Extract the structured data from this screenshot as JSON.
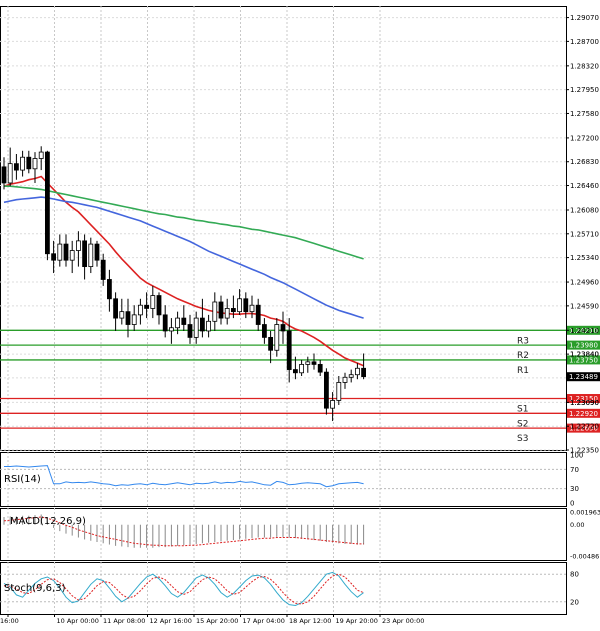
{
  "chart_data": [
    {
      "type": "candlestick",
      "price_axis": {
        "ticks": [
          "1.29070",
          "1.28700",
          "1.28320",
          "1.27950",
          "1.27580",
          "1.27200",
          "1.26830",
          "1.26460",
          "1.26080",
          "1.25710",
          "1.25340",
          "1.24960",
          "1.24590",
          "1.24210",
          "1.23840",
          "1.23470",
          "1.23090",
          "1.22720",
          "1.22350"
        ],
        "ylim": [
          1.2235,
          1.2925
        ]
      },
      "time_axis": {
        "labels": [
          "16:00",
          "10 Apr 00:00",
          "11 Apr 08:00",
          "12 Apr 16:00",
          "15 Apr 20:00",
          "17 Apr 04:00",
          "18 Apr 12:00",
          "19 Apr 20:00",
          "23 Apr 00:00"
        ]
      },
      "candles": [
        [
          1.2675,
          1.269,
          1.264,
          1.265
        ],
        [
          1.265,
          1.2705,
          1.2645,
          1.268
        ],
        [
          1.268,
          1.2695,
          1.2655,
          1.267
        ],
        [
          1.267,
          1.27,
          1.266,
          1.269
        ],
        [
          1.269,
          1.27,
          1.2665,
          1.2672
        ],
        [
          1.2672,
          1.2698,
          1.265,
          1.2688
        ],
        [
          1.2688,
          1.2707,
          1.267,
          1.2698
        ],
        [
          1.2698,
          1.27,
          1.253,
          1.254
        ],
        [
          1.254,
          1.256,
          1.251,
          1.253
        ],
        [
          1.253,
          1.257,
          1.252,
          1.2555
        ],
        [
          1.2555,
          1.257,
          1.252,
          1.253
        ],
        [
          1.253,
          1.256,
          1.251,
          1.2545
        ],
        [
          1.2545,
          1.2575,
          1.252,
          1.256
        ],
        [
          1.256,
          1.257,
          1.25,
          1.252
        ],
        [
          1.252,
          1.2565,
          1.251,
          1.2555
        ],
        [
          1.2555,
          1.256,
          1.252,
          1.253
        ],
        [
          1.253,
          1.254,
          1.249,
          1.25
        ],
        [
          1.25,
          1.2515,
          1.245,
          1.247
        ],
        [
          1.247,
          1.248,
          1.242,
          1.244
        ],
        [
          1.244,
          1.247,
          1.243,
          1.245
        ],
        [
          1.245,
          1.247,
          1.241,
          1.243
        ],
        [
          1.243,
          1.246,
          1.242,
          1.2445
        ],
        [
          1.2445,
          1.247,
          1.243,
          1.246
        ],
        [
          1.246,
          1.248,
          1.244,
          1.2455
        ],
        [
          1.2455,
          1.249,
          1.244,
          1.2475
        ],
        [
          1.2475,
          1.248,
          1.243,
          1.2445
        ],
        [
          1.2445,
          1.246,
          1.241,
          1.242
        ],
        [
          1.242,
          1.244,
          1.24,
          1.2425
        ],
        [
          1.2425,
          1.245,
          1.2415,
          1.244
        ],
        [
          1.244,
          1.246,
          1.242,
          1.243
        ],
        [
          1.243,
          1.2445,
          1.24,
          1.241
        ],
        [
          1.241,
          1.245,
          1.24,
          1.244
        ],
        [
          1.244,
          1.247,
          1.241,
          1.242
        ],
        [
          1.242,
          1.2445,
          1.241,
          1.2435
        ],
        [
          1.2435,
          1.248,
          1.242,
          1.2465
        ],
        [
          1.2465,
          1.2475,
          1.243,
          1.244
        ],
        [
          1.244,
          1.247,
          1.243,
          1.2455
        ],
        [
          1.2455,
          1.2475,
          1.244,
          1.245
        ],
        [
          1.245,
          1.2485,
          1.2445,
          1.247
        ],
        [
          1.247,
          1.248,
          1.244,
          1.245
        ],
        [
          1.245,
          1.2475,
          1.244,
          1.246
        ],
        [
          1.246,
          1.247,
          1.242,
          1.243
        ],
        [
          1.243,
          1.244,
          1.24,
          1.241
        ],
        [
          1.241,
          1.242,
          1.237,
          1.239
        ],
        [
          1.239,
          1.244,
          1.238,
          1.243
        ],
        [
          1.243,
          1.245,
          1.24,
          1.242
        ],
        [
          1.242,
          1.244,
          1.234,
          1.236
        ],
        [
          1.236,
          1.238,
          1.2345,
          1.2355
        ],
        [
          1.2355,
          1.2375,
          1.235,
          1.2368
        ],
        [
          1.2368,
          1.238,
          1.2355,
          1.2372
        ],
        [
          1.2372,
          1.2385,
          1.236,
          1.2368
        ],
        [
          1.2368,
          1.2375,
          1.235,
          1.2356
        ],
        [
          1.2356,
          1.2362,
          1.229,
          1.23
        ],
        [
          1.23,
          1.2325,
          1.228,
          1.2312
        ],
        [
          1.2312,
          1.235,
          1.2305,
          1.234
        ],
        [
          1.234,
          1.2355,
          1.233,
          1.2348
        ],
        [
          1.2348,
          1.236,
          1.234,
          1.2352
        ],
        [
          1.2352,
          1.237,
          1.2345,
          1.2362
        ],
        [
          1.2362,
          1.2385,
          1.2345,
          1.2349
        ]
      ],
      "moving_averages": [
        {
          "color": "#dd2222",
          "values": [
            1.2645,
            1.2648,
            1.265,
            1.2652,
            1.2655,
            1.2657,
            1.266,
            1.265,
            1.264,
            1.263,
            1.262,
            1.2612,
            1.2605,
            1.2595,
            1.2585,
            1.2575,
            1.2565,
            1.2555,
            1.2543,
            1.2532,
            1.2522,
            1.2512,
            1.2502,
            1.2495,
            1.249,
            1.2485,
            1.248,
            1.2475,
            1.247,
            1.2466,
            1.2462,
            1.2458,
            1.2455,
            1.2452,
            1.245,
            1.2448,
            1.2447,
            1.2446,
            1.2446,
            1.2447,
            1.2447,
            1.2446,
            1.2444,
            1.244,
            1.2438,
            1.2435,
            1.2428,
            1.2423,
            1.242,
            1.2415,
            1.241,
            1.2404,
            1.2397,
            1.239,
            1.2384,
            1.2378,
            1.2374,
            1.237,
            1.2366
          ]
        },
        {
          "color": "#4466dd",
          "values": [
            1.262,
            1.2622,
            1.2624,
            1.2625,
            1.2626,
            1.2627,
            1.2628,
            1.2627,
            1.2625,
            1.2623,
            1.2621,
            1.262,
            1.2618,
            1.2616,
            1.2614,
            1.2612,
            1.2609,
            1.2606,
            1.2603,
            1.26,
            1.2597,
            1.2594,
            1.2591,
            1.2587,
            1.2583,
            1.2579,
            1.2575,
            1.2571,
            1.2567,
            1.2563,
            1.2559,
            1.2554,
            1.2549,
            1.2544,
            1.254,
            1.2536,
            1.2532,
            1.2528,
            1.2524,
            1.252,
            1.2516,
            1.2512,
            1.2508,
            1.2503,
            1.2499,
            1.2495,
            1.249,
            1.2485,
            1.248,
            1.2475,
            1.247,
            1.2465,
            1.246,
            1.2456,
            1.2452,
            1.2449,
            1.2446,
            1.2443,
            1.244
          ]
        },
        {
          "color": "#33aa55",
          "values": [
            1.2645,
            1.2645,
            1.2644,
            1.2643,
            1.2642,
            1.2641,
            1.264,
            1.2638,
            1.2636,
            1.2634,
            1.2632,
            1.263,
            1.2628,
            1.2626,
            1.2624,
            1.2622,
            1.262,
            1.2618,
            1.2616,
            1.2614,
            1.2612,
            1.261,
            1.2608,
            1.2606,
            1.2604,
            1.2602,
            1.2601,
            1.2599,
            1.2597,
            1.2596,
            1.2594,
            1.2592,
            1.2591,
            1.2589,
            1.2588,
            1.2586,
            1.2585,
            1.2583,
            1.2582,
            1.258,
            1.2578,
            1.2577,
            1.2575,
            1.2573,
            1.2571,
            1.2569,
            1.2567,
            1.2565,
            1.2562,
            1.2559,
            1.2556,
            1.2553,
            1.255,
            1.2547,
            1.2544,
            1.2541,
            1.2538,
            1.2535,
            1.2532
          ]
        }
      ],
      "pivot_levels": [
        {
          "label": "R3",
          "price": "1.24210",
          "color": "#2a9d2a"
        },
        {
          "label": "R2",
          "price": "1.23980",
          "color": "#2a9d2a"
        },
        {
          "label": "R1",
          "price": "1.23750",
          "color": "#2a9d2a"
        },
        {
          "label": "S1",
          "price": "1.23150",
          "color": "#dd2222"
        },
        {
          "label": "S2",
          "price": "1.22920",
          "color": "#dd2222"
        },
        {
          "label": "S3",
          "price": "1.22690",
          "color": "#dd2222"
        }
      ],
      "extra_price_labels": [
        "1.23840",
        "1.23090"
      ],
      "current_price": "1.23489"
    },
    {
      "type": "line",
      "title": "RSI(14)",
      "ticks": [
        "100",
        "70",
        "30",
        "0"
      ],
      "ylim": [
        0,
        100
      ],
      "levels": [
        70,
        30
      ],
      "color": "#3388ee",
      "values": [
        76,
        76,
        77,
        76,
        75,
        76,
        77,
        78,
        40,
        40,
        44,
        42,
        43,
        42,
        44,
        42,
        40,
        39,
        36,
        38,
        37,
        39,
        40,
        38,
        41,
        39,
        38,
        40,
        42,
        40,
        38,
        41,
        40,
        41,
        44,
        41,
        43,
        42,
        45,
        43,
        44,
        41,
        38,
        37,
        45,
        43,
        38,
        39,
        41,
        42,
        41,
        40,
        34,
        36,
        40,
        41,
        42,
        43,
        40
      ]
    },
    {
      "type": "histogram",
      "title": "MACD(12,26,9)",
      "ticks": [
        "0.001963",
        "0.00",
        "-0.004861"
      ],
      "ylim": [
        -0.0052,
        0.0023
      ],
      "bar_color": "#888888",
      "signal_color": "#dd2222",
      "values": [
        0.0012,
        0.0013,
        0.0013,
        0.0014,
        0.0014,
        0.0015,
        0.0016,
        0.0004,
        -0.0005,
        -0.001,
        -0.0014,
        -0.0017,
        -0.002,
        -0.0023,
        -0.0025,
        -0.0027,
        -0.0029,
        -0.0031,
        -0.0033,
        -0.0034,
        -0.0035,
        -0.0036,
        -0.0036,
        -0.0036,
        -0.0036,
        -0.0035,
        -0.0035,
        -0.0034,
        -0.0033,
        -0.0032,
        -0.0031,
        -0.003,
        -0.0029,
        -0.0028,
        -0.0027,
        -0.0026,
        -0.0025,
        -0.0024,
        -0.0023,
        -0.0022,
        -0.0021,
        -0.002,
        -0.002,
        -0.002,
        -0.0019,
        -0.0019,
        -0.002,
        -0.0021,
        -0.0022,
        -0.0023,
        -0.0024,
        -0.0025,
        -0.0027,
        -0.0028,
        -0.0029,
        -0.003,
        -0.003,
        -0.0031,
        -0.0031
      ],
      "signal": [
        0.0006,
        0.0007,
        0.0008,
        0.0009,
        0.001,
        0.0011,
        0.0012,
        0.001,
        0.0007,
        0.0003,
        -0.0001,
        -0.0004,
        -0.0008,
        -0.0011,
        -0.0014,
        -0.0017,
        -0.0019,
        -0.0021,
        -0.0023,
        -0.0025,
        -0.0027,
        -0.0029,
        -0.003,
        -0.0031,
        -0.0032,
        -0.0032,
        -0.0033,
        -0.0033,
        -0.0033,
        -0.0033,
        -0.0032,
        -0.0032,
        -0.0031,
        -0.003,
        -0.0029,
        -0.0028,
        -0.0027,
        -0.0026,
        -0.0025,
        -0.0024,
        -0.0023,
        -0.0022,
        -0.0021,
        -0.0021,
        -0.002,
        -0.002,
        -0.002,
        -0.002,
        -0.0021,
        -0.0022,
        -0.0023,
        -0.0024,
        -0.0025,
        -0.0026,
        -0.0027,
        -0.0028,
        -0.0029,
        -0.003,
        -0.003
      ]
    },
    {
      "type": "line",
      "title": "Stoch(9,6,3)",
      "ticks": [
        "80",
        "20"
      ],
      "ylim": [
        0,
        100
      ],
      "levels": [
        80,
        20
      ],
      "main_color": "#33aacc",
      "signal_color": "#dd2222",
      "main": [
        60,
        52,
        35,
        30,
        45,
        60,
        70,
        74,
        66,
        50,
        30,
        18,
        22,
        40,
        58,
        70,
        66,
        50,
        32,
        20,
        28,
        44,
        60,
        74,
        80,
        70,
        55,
        38,
        30,
        40,
        56,
        72,
        78,
        72,
        58,
        40,
        30,
        38,
        52,
        66,
        76,
        78,
        72,
        58,
        40,
        24,
        14,
        12,
        18,
        32,
        48,
        64,
        80,
        84,
        76,
        58,
        42,
        30,
        40
      ],
      "signal": [
        55,
        54,
        48,
        40,
        38,
        46,
        58,
        68,
        70,
        62,
        48,
        33,
        24,
        27,
        40,
        55,
        64,
        62,
        50,
        36,
        28,
        32,
        44,
        59,
        71,
        74,
        68,
        55,
        42,
        36,
        42,
        55,
        68,
        74,
        70,
        58,
        44,
        36,
        40,
        52,
        64,
        73,
        75,
        69,
        56,
        40,
        26,
        17,
        15,
        20,
        32,
        48,
        64,
        76,
        80,
        74,
        60,
        45,
        40
      ]
    }
  ]
}
